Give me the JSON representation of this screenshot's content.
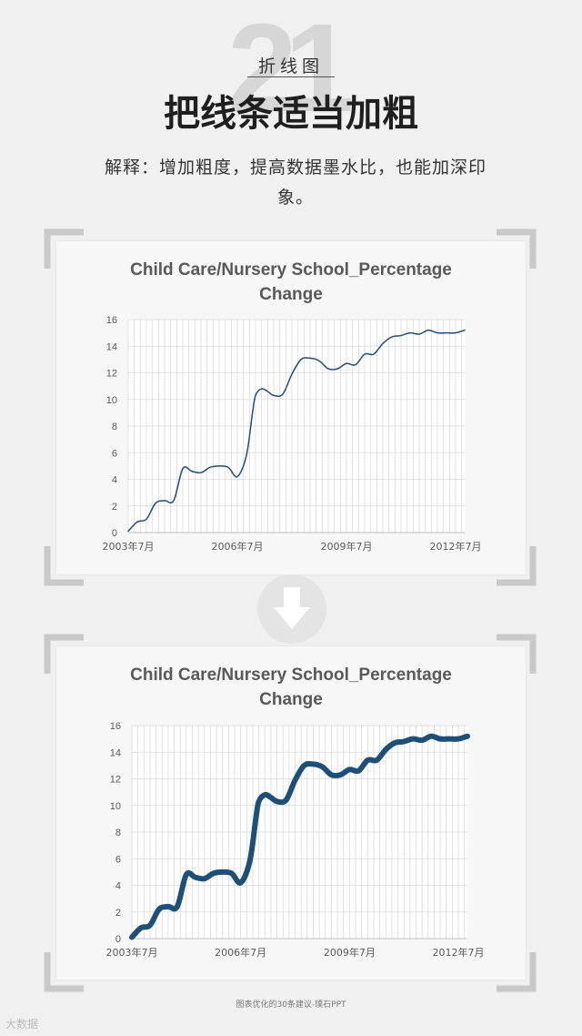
{
  "header": {
    "number": "21",
    "category": "折线图",
    "headline": "把线条适当加粗",
    "explanation": "解释：增加粗度，提高数据墨水比，也能加深印象。"
  },
  "colors": {
    "line_before": "#1f4e79",
    "line_after": "#1d4f78",
    "grid": "#d9d9d9",
    "bracket": "#c9c9c9",
    "arrow": "#ffffff",
    "arrow_bg": "#e4e4e4"
  },
  "icons": {
    "transition": "arrow-down-icon"
  },
  "footer": {
    "caption": "图表优化的30条建议-璞石PPT",
    "watermark": "大数据"
  },
  "chart_data": [
    {
      "panel": "before",
      "type": "line",
      "title": "Child Care/Nursery School_Percentage Change",
      "title_lines": [
        "Child Care/Nursery School_Percentage",
        "Change"
      ],
      "line_style": "thin",
      "ylim": [
        0,
        16
      ],
      "yticks": [
        "0",
        "2",
        "4",
        "6",
        "8",
        "10",
        "12",
        "14",
        "16"
      ],
      "xticks": [
        "2003年7月",
        "2006年7月",
        "2009年7月",
        "2012年7月"
      ],
      "xlim": [
        "2003-07",
        "2012-10"
      ],
      "grid": true,
      "series": [
        {
          "x": [
            "2003-07",
            "2003-10",
            "2004-01",
            "2004-04",
            "2004-07",
            "2004-10",
            "2005-01",
            "2005-04",
            "2005-07",
            "2005-10",
            "2006-01",
            "2006-04",
            "2006-07",
            "2006-10",
            "2006-12",
            "2007-01",
            "2007-03",
            "2007-05",
            "2007-07",
            "2007-10",
            "2008-01",
            "2008-04",
            "2008-07",
            "2008-10",
            "2009-01",
            "2009-04",
            "2009-07",
            "2009-10",
            "2010-01",
            "2010-04",
            "2010-07",
            "2010-10",
            "2011-01",
            "2011-04",
            "2011-07",
            "2011-10",
            "2012-01",
            "2012-04",
            "2012-07",
            "2012-10"
          ],
          "values": [
            0.1,
            0.8,
            1.0,
            2.2,
            2.4,
            2.4,
            4.8,
            4.6,
            4.5,
            4.9,
            5.0,
            4.9,
            4.2,
            5.8,
            9.0,
            10.3,
            10.8,
            10.6,
            10.3,
            10.4,
            11.9,
            13.0,
            13.1,
            12.9,
            12.3,
            12.3,
            12.7,
            12.6,
            13.4,
            13.4,
            14.2,
            14.7,
            14.8,
            15.0,
            14.9,
            15.2,
            15.0,
            15.0,
            15.0,
            15.2
          ]
        }
      ]
    },
    {
      "panel": "after",
      "type": "line",
      "title": "Child Care/Nursery School_Percentage Change",
      "title_lines": [
        "Child Care/Nursery School_Percentage",
        "Change"
      ],
      "line_style": "thick",
      "ylim": [
        0,
        16
      ],
      "yticks": [
        "0",
        "2",
        "4",
        "6",
        "8",
        "10",
        "12",
        "14",
        "16"
      ],
      "xticks": [
        "2003年7月",
        "2006年7月",
        "2009年7月",
        "2012年7月"
      ],
      "xlim": [
        "2003-07",
        "2012-10"
      ],
      "grid": true,
      "series": [
        {
          "x": [
            "2003-07",
            "2003-10",
            "2004-01",
            "2004-04",
            "2004-07",
            "2004-10",
            "2005-01",
            "2005-04",
            "2005-07",
            "2005-10",
            "2006-01",
            "2006-04",
            "2006-07",
            "2006-10",
            "2006-12",
            "2007-01",
            "2007-03",
            "2007-05",
            "2007-07",
            "2007-10",
            "2008-01",
            "2008-04",
            "2008-07",
            "2008-10",
            "2009-01",
            "2009-04",
            "2009-07",
            "2009-10",
            "2010-01",
            "2010-04",
            "2010-07",
            "2010-10",
            "2011-01",
            "2011-04",
            "2011-07",
            "2011-10",
            "2012-01",
            "2012-04",
            "2012-07",
            "2012-10"
          ],
          "values": [
            0.1,
            0.8,
            1.0,
            2.2,
            2.4,
            2.4,
            4.8,
            4.6,
            4.5,
            4.9,
            5.0,
            4.9,
            4.2,
            5.8,
            9.0,
            10.3,
            10.8,
            10.6,
            10.3,
            10.4,
            11.9,
            13.0,
            13.1,
            12.9,
            12.3,
            12.3,
            12.7,
            12.6,
            13.4,
            13.4,
            14.2,
            14.7,
            14.8,
            15.0,
            14.9,
            15.2,
            15.0,
            15.0,
            15.0,
            15.2
          ]
        }
      ]
    }
  ]
}
